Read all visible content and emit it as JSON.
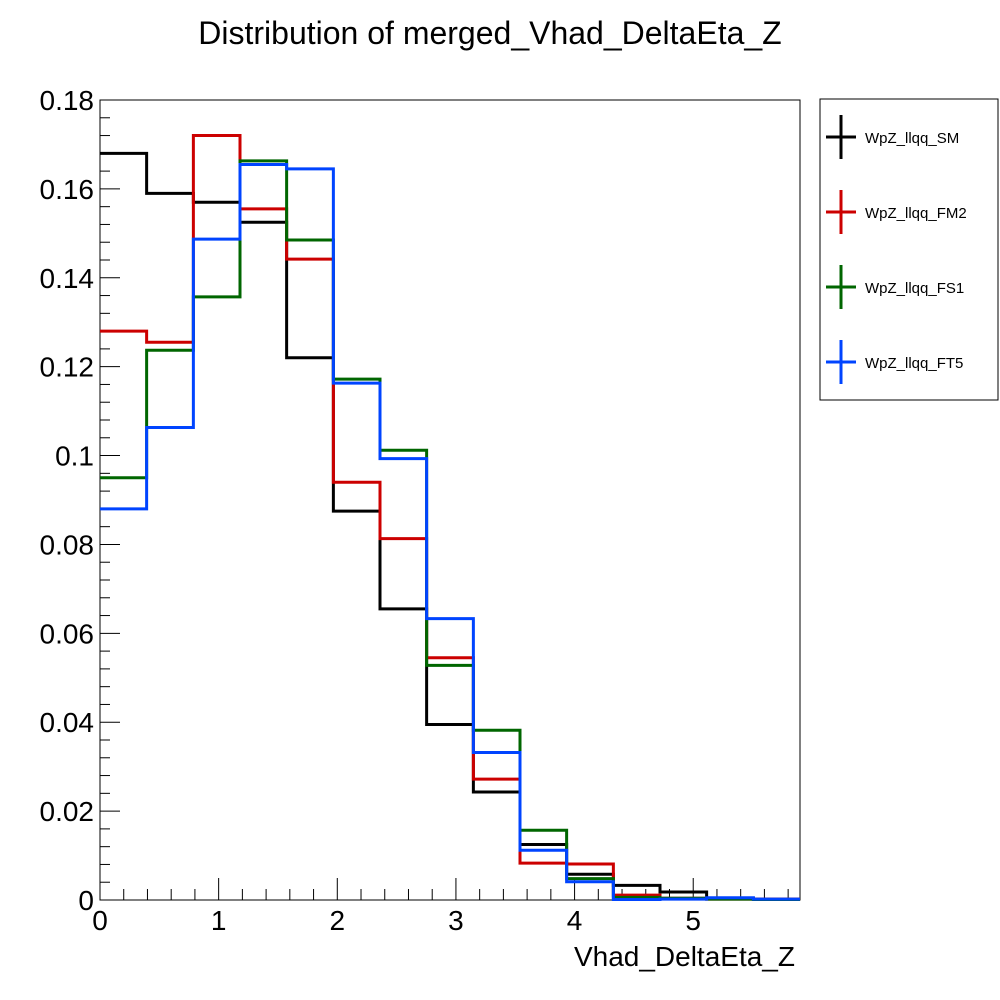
{
  "chart_data": {
    "type": "line",
    "title": "Distribution of merged_Vhad_DeltaEta_Z",
    "xlabel": "Vhad_DeltaEta_Z",
    "ylabel": "",
    "xlim": [
      0,
      5.9
    ],
    "ylim": [
      0,
      0.18
    ],
    "x_ticks": [
      "0",
      "1",
      "2",
      "3",
      "4",
      "5"
    ],
    "x_tick_values": [
      0,
      1,
      2,
      3,
      4,
      5
    ],
    "y_ticks": [
      "0",
      "0.02",
      "0.04",
      "0.06",
      "0.08",
      "0.1",
      "0.12",
      "0.14",
      "0.16",
      "0.18"
    ],
    "y_tick_values": [
      0,
      0.02,
      0.04,
      0.06,
      0.08,
      0.1,
      0.12,
      0.14,
      0.16,
      0.18
    ],
    "bin_edges": [
      0,
      0.393,
      0.787,
      1.18,
      1.573,
      1.967,
      2.36,
      2.753,
      3.147,
      3.54,
      3.933,
      4.327,
      4.72,
      5.113,
      5.507,
      5.9
    ],
    "series": [
      {
        "name": "WpZ_llqq_SM",
        "color": "#000000",
        "values": [
          0.168,
          0.159,
          0.157,
          0.1525,
          0.122,
          0.0875,
          0.0655,
          0.0395,
          0.0243,
          0.0125,
          0.0058,
          0.0033,
          0.0018,
          0.0004,
          0.0002
        ]
      },
      {
        "name": "WpZ_llqq_FM2",
        "color": "#cc0000",
        "values": [
          0.128,
          0.1255,
          0.172,
          0.1555,
          0.1442,
          0.094,
          0.0813,
          0.0545,
          0.0272,
          0.0083,
          0.0081,
          0.0011,
          0.0004,
          0.0002,
          0.0002
        ]
      },
      {
        "name": "WpZ_llqq_FS1",
        "color": "#006600",
        "values": [
          0.095,
          0.1237,
          0.1357,
          0.1663,
          0.1485,
          0.1172,
          0.1012,
          0.0528,
          0.0382,
          0.0157,
          0.0048,
          0.0006,
          0.0004,
          0.0002,
          0.0001
        ]
      },
      {
        "name": "WpZ_llqq_FT5",
        "color": "#0044ff",
        "values": [
          0.088,
          0.1063,
          0.1487,
          0.1655,
          0.1645,
          0.1163,
          0.0993,
          0.0633,
          0.0332,
          0.0112,
          0.0041,
          0.0001,
          0.0002,
          0.0005,
          0.0002
        ]
      }
    ],
    "legend": {
      "position": "right-top",
      "entries": [
        "WpZ_llqq_SM",
        "WpZ_llqq_FM2",
        "WpZ_llqq_FS1",
        "WpZ_llqq_FT5"
      ]
    },
    "grid": false
  }
}
